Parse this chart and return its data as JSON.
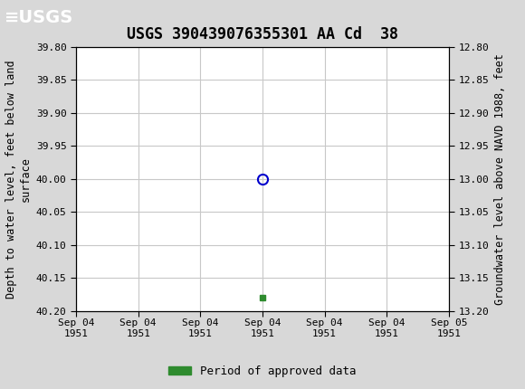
{
  "title": "USGS 390439076355301 AA Cd  38",
  "ylabel_left": "Depth to water level, feet below land\nsurface",
  "ylabel_right": "Groundwater level above NAVD 1988, feet",
  "ylim_left": [
    39.8,
    40.2
  ],
  "ylim_right_top": 13.2,
  "ylim_right_bottom": 12.8,
  "yticks_left": [
    39.8,
    39.85,
    39.9,
    39.95,
    40.0,
    40.05,
    40.1,
    40.15,
    40.2
  ],
  "yticks_right": [
    13.2,
    13.15,
    13.1,
    13.05,
    13.0,
    12.95,
    12.9,
    12.85,
    12.8
  ],
  "ytick_labels_right": [
    "13.20",
    "13.15",
    "13.10",
    "13.05",
    "13.00",
    "12.95",
    "12.90",
    "12.85",
    "12.80"
  ],
  "data_point_x": 3,
  "data_point_y": 40.0,
  "data_marker_x": 3,
  "data_marker_y": 40.18,
  "xlim": [
    0,
    6
  ],
  "xtick_positions": [
    0,
    1,
    2,
    3,
    4,
    5,
    6
  ],
  "xtick_labels": [
    "Sep 04\n1951",
    "Sep 04\n1951",
    "Sep 04\n1951",
    "Sep 04\n1951",
    "Sep 04\n1951",
    "Sep 04\n1951",
    "Sep 05\n1951"
  ],
  "header_color": "#1a6b3c",
  "bg_color": "#d8d8d8",
  "plot_bg_color": "#ffffff",
  "grid_color": "#c8c8c8",
  "open_circle_color": "#0000cc",
  "green_marker_color": "#2e8b2e",
  "legend_label": "Period of approved data",
  "title_fontsize": 12,
  "axis_label_fontsize": 8.5,
  "tick_fontsize": 8
}
